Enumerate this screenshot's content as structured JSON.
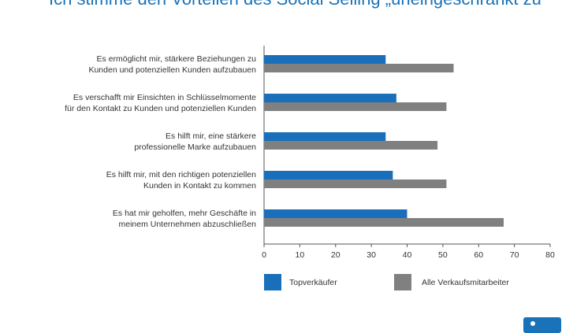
{
  "chart_data": {
    "type": "bar",
    "orientation": "horizontal",
    "title": "Ich stimme den Vorteilen des Social Selling „uneingeschränkt zu“",
    "categories": [
      [
        "Es ermöglicht mir, stärkere Beziehungen zu",
        "Kunden und potenziellen Kunden aufzubauen"
      ],
      [
        "Es verschafft mir Einsichten in Schlüsselmomente",
        "für den Kontakt zu Kunden und potenziellen Kunden"
      ],
      [
        "Es hilft mir, eine stärkere",
        "professionelle Marke aufzubauen"
      ],
      [
        "Es hilft mir, mit den richtigen potenziellen",
        "Kunden in Kontakt zu kommen"
      ],
      [
        "Es hat mir geholfen, mehr Geschäfte in",
        "meinem Unternehmen abzuschließen"
      ]
    ],
    "series": [
      {
        "name": "Topverkäufer",
        "color": "#1a6fba",
        "values": [
          34,
          37,
          34,
          36,
          40
        ]
      },
      {
        "name": "Alle Verkaufsmitarbeiter",
        "color": "#808080",
        "values": [
          53,
          51,
          48.5,
          51,
          67
        ]
      }
    ],
    "xlim": [
      0,
      80
    ],
    "xticks": [
      0,
      10,
      20,
      30,
      40,
      50,
      60,
      70,
      80
    ],
    "grid": false,
    "legend_position": "bottom"
  }
}
